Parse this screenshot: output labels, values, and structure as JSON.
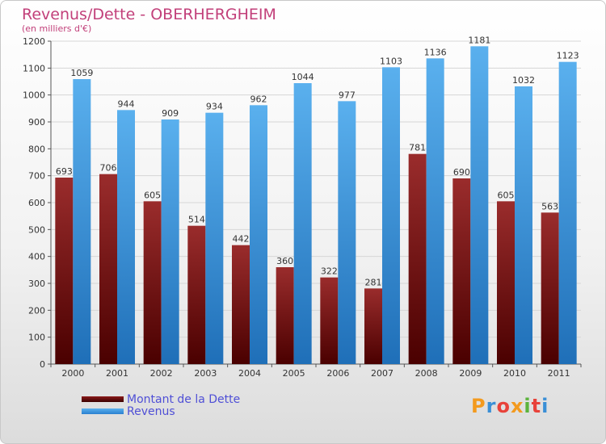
{
  "title": "Revenus/Dette - OBERHERGHEIM",
  "subtitle": "(en milliers d'€)",
  "logo": {
    "text": "Proxiti",
    "colors": [
      "#f39a1e",
      "#3a8fd6",
      "#e8423a",
      "#f39a1e",
      "#5bb33c",
      "#e8423a",
      "#3a8fd6"
    ]
  },
  "colors": {
    "debt": "#8b1a1a",
    "revenue": "#3a97e0",
    "title": "#c2407a",
    "legend_text": "#4f4fd6"
  },
  "chart_data": {
    "type": "bar",
    "categories": [
      "2000",
      "2001",
      "2002",
      "2003",
      "2004",
      "2005",
      "2006",
      "2007",
      "2008",
      "2009",
      "2010",
      "2011"
    ],
    "series": [
      {
        "name": "Montant de la Dette",
        "values": [
          693,
          706,
          605,
          514,
          442,
          360,
          322,
          281,
          781,
          690,
          605,
          563
        ]
      },
      {
        "name": "Revenus",
        "values": [
          1059,
          944,
          909,
          934,
          962,
          1044,
          977,
          1103,
          1136,
          1181,
          1032,
          1123
        ]
      }
    ],
    "ylim": [
      0,
      1200
    ],
    "yticks": [
      0,
      100,
      200,
      300,
      400,
      500,
      600,
      700,
      800,
      900,
      1000,
      1100,
      1200
    ],
    "grid": true,
    "legend_position": "bottom-left"
  }
}
